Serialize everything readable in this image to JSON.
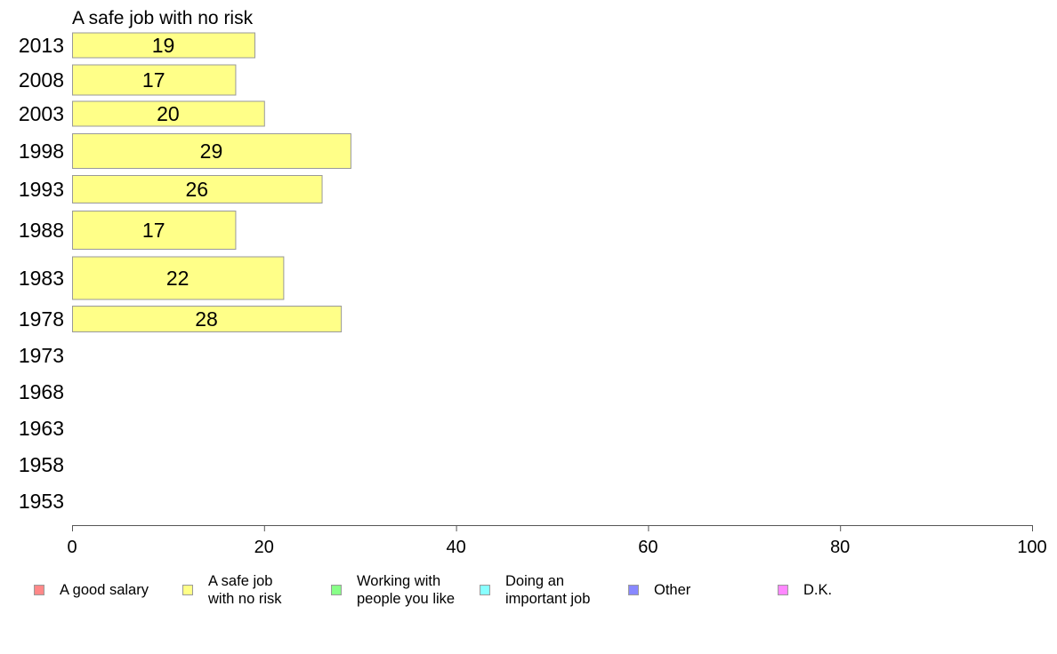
{
  "chart_data": {
    "type": "bar",
    "orientation": "horizontal",
    "title": "A safe job with no risk",
    "categories": [
      "2013",
      "2008",
      "2003",
      "1998",
      "1993",
      "1988",
      "1983",
      "1978",
      "1973",
      "1968",
      "1963",
      "1958",
      "1953"
    ],
    "values": [
      19,
      17,
      20,
      29,
      26,
      17,
      22,
      28,
      null,
      null,
      null,
      null,
      null
    ],
    "xlim": [
      0,
      100
    ],
    "xticks": [
      "0",
      "20",
      "40",
      "60",
      "80",
      "100"
    ],
    "grid": false,
    "bar_color": "#ffff88",
    "bar_border_color": "#999999",
    "legend_position": "bottom",
    "legend": [
      {
        "label": "A good salary",
        "color": "#ff8888"
      },
      {
        "label": "A safe job\nwith no risk",
        "color": "#ffff88"
      },
      {
        "label": "Working with\npeople you like",
        "color": "#88ff88"
      },
      {
        "label": "Doing an\nimportant job",
        "color": "#88ffff"
      },
      {
        "label": "Other",
        "color": "#8888ff"
      },
      {
        "label": "D.K.",
        "color": "#ff88ff"
      }
    ]
  }
}
